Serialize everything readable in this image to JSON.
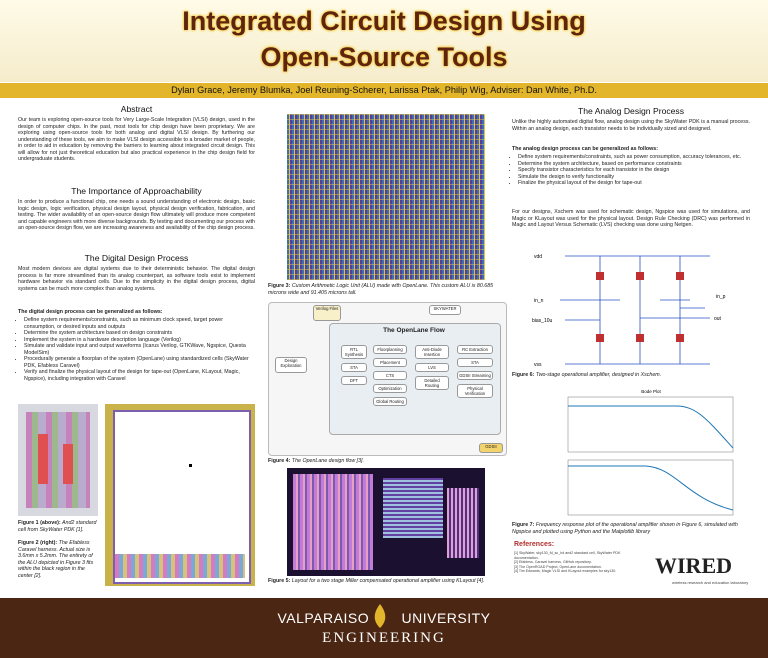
{
  "header": {
    "title_line1": "Integrated Circuit Design Using",
    "title_line2": "Open-Source Tools",
    "authors": "Dylan Grace, Jeremy Blumka, Joel Reuning-Scherer, Larissa Ptak, Philip Wig, Adviser: Dan White, Ph.D."
  },
  "abstract": {
    "heading": "Abstract",
    "body": "Our team is exploring open-source tools for Very Large-Scale Integration (VLSI) design, used in the design of computer chips. In the past, most tools for chip design have been proprietary. We are exploring using open-source tools for both analog and digital VLSI design. By furthering our understanding of these tools, we aim to make VLSI design accessible to a broader market of people, in order to aid in education by removing the barriers to learning about integrated circuit design. This will allow for not just theoretical education but also practical experience in the chip design field for undergraduate students."
  },
  "approach": {
    "heading": "The Importance of Approachability",
    "body": "In order to produce a functional chip, one needs a sound understanding of electronic design, basic logic design, logic verification, physical design layout, physical design verification, fabrication, and testing. The wider availability of an open-source design flow ultimately will produce more competent and capable engineers with more diverse backgrounds. By testing and documenting our process with an open-source design flow, we are increasing awareness and availability of the chip design process."
  },
  "digital": {
    "heading": "The Digital Design Process",
    "body": "Most modern devices are digital systems due to their deterministic behavior. The digital design process is far more streamlined than its analog counterpart, as software tools exist to implement hardware behavior via standard cells. Due to the simplicity in the digital design process, digital systems can be much more complex than analog systems.",
    "list_heading": "The digital design process can be generalized as follows:",
    "items": [
      "Define system requirements/constraints, such as minimum clock speed, target power consumption, or desired inputs and outputs",
      "Determine the system architecture based on design constraints",
      "Implement the system in a hardware description language (Verilog)",
      "Simulate and validate input and output waveforms (Icarus Verilog, GTKWave, Ngspice, Questa ModelSim)",
      "Procedurally generate a floorplan of the system (OpenLane) using standardized cells (SkyWater PDK, Efabless Caravel)",
      "Verify and finalize the physical layout of the design for tape-out (OpenLane, KLayout, Magic, Ngspice), including integration with Caravel"
    ]
  },
  "figure1": {
    "label": "Figure 1 (above):",
    "text": "And2 standard cell from SkyWater PDK [1]."
  },
  "figure2": {
    "label": "Figure 2 (right):",
    "text": "The Efabless Caravel harness. Actual size is 3.6mm x 5.2mm. The entirety of the ALU depicted in Figure 3 fits within the black region in the center [2]."
  },
  "figure3": {
    "label": "Figure 3:",
    "text": "Custom Arithmetic Logic Unit (ALU) made with OpenLane. This custom ALU is 80.685 microns wide and 91.405 microns tall."
  },
  "openlane": {
    "title": "The OpenLane Flow",
    "inputs": "Verilog Files",
    "pdk": "SKYWATER",
    "output": "GDSII",
    "explore": "Design Exploration",
    "synthesis": [
      "RTL Synthesis",
      "STA",
      "DFT"
    ],
    "floorplan": [
      "Floorplanning",
      "Placement",
      "CTS",
      "Optimization",
      "Global Routing"
    ],
    "routing": [
      "Anti-Diode Insertion",
      "LVS",
      "Detailed Routing"
    ],
    "signoff": [
      "RC Extraction",
      "STA",
      "GDSII Streaming",
      "Physical Verification"
    ]
  },
  "figure4": {
    "label": "Figure 4:",
    "text": "The OpenLane design flow [3]."
  },
  "figure5": {
    "label": "Figure 5:",
    "text": "Layout for a two stage Miller compensated operational amplifier using KLayout [4]."
  },
  "analog": {
    "heading": "The Analog Design Process",
    "body": "Unlike the highly automated digital flow, analog design using the SkyWater PDK is a manual process. Within an analog design, each transistor needs to be individually sized and designed.",
    "list_heading": "The analog design process can be generalized as follows:",
    "items": [
      "Define system requirements/constraints, such as power consumption, accuracy tolerances, etc.",
      "Determine the system architecture, based on performance constraints",
      "Specify transistor characteristics for each transistor in the design",
      "Simulate the design to verify functionality",
      "Finalize the physical layout of the design for tape-out"
    ],
    "body2": "For our designs, Xschem was used for schematic design, Ngspice was used for simulations, and Magic or KLayout was used for the physical layout. Design Rule Checking (DRC) was performed in Magic and Layout Versus Schematic (LVS) checking was done using Netgen."
  },
  "schematic": {
    "nodes": [
      "vdd",
      "in_n",
      "in_p",
      "bias_10u",
      "out",
      "vss"
    ]
  },
  "figure6": {
    "label": "Figure 6:",
    "text": "Two-stage operational amplifier, designed in Xschem."
  },
  "bode": {
    "title": "Bode Plot"
  },
  "figure7": {
    "label": "Figure 7:",
    "text": "Frequency response plot of the operational amplifier shown in Figure 6, simulated with Ngspice and plotted using Python and the Matplotlib library"
  },
  "references": {
    "heading": "References:",
    "items": [
      "[1] SkyWater, sky130_fd_sc_hd and2 standard cell, SkyWater PDK documentation.",
      "[2] Efabless, Caravel harness, GitHub repository.",
      "[3] The OpenROAD Project, OpenLane documentation.",
      "[4] Tim Edwards, Magic VLSI and KLayout examples for sky130."
    ]
  },
  "logo": {
    "name": "WIRED",
    "tagline": "wireless research and education laboratory"
  },
  "footer": {
    "university": "VALPARAISO UNIVERSITY",
    "school": "ENGINEERING"
  }
}
